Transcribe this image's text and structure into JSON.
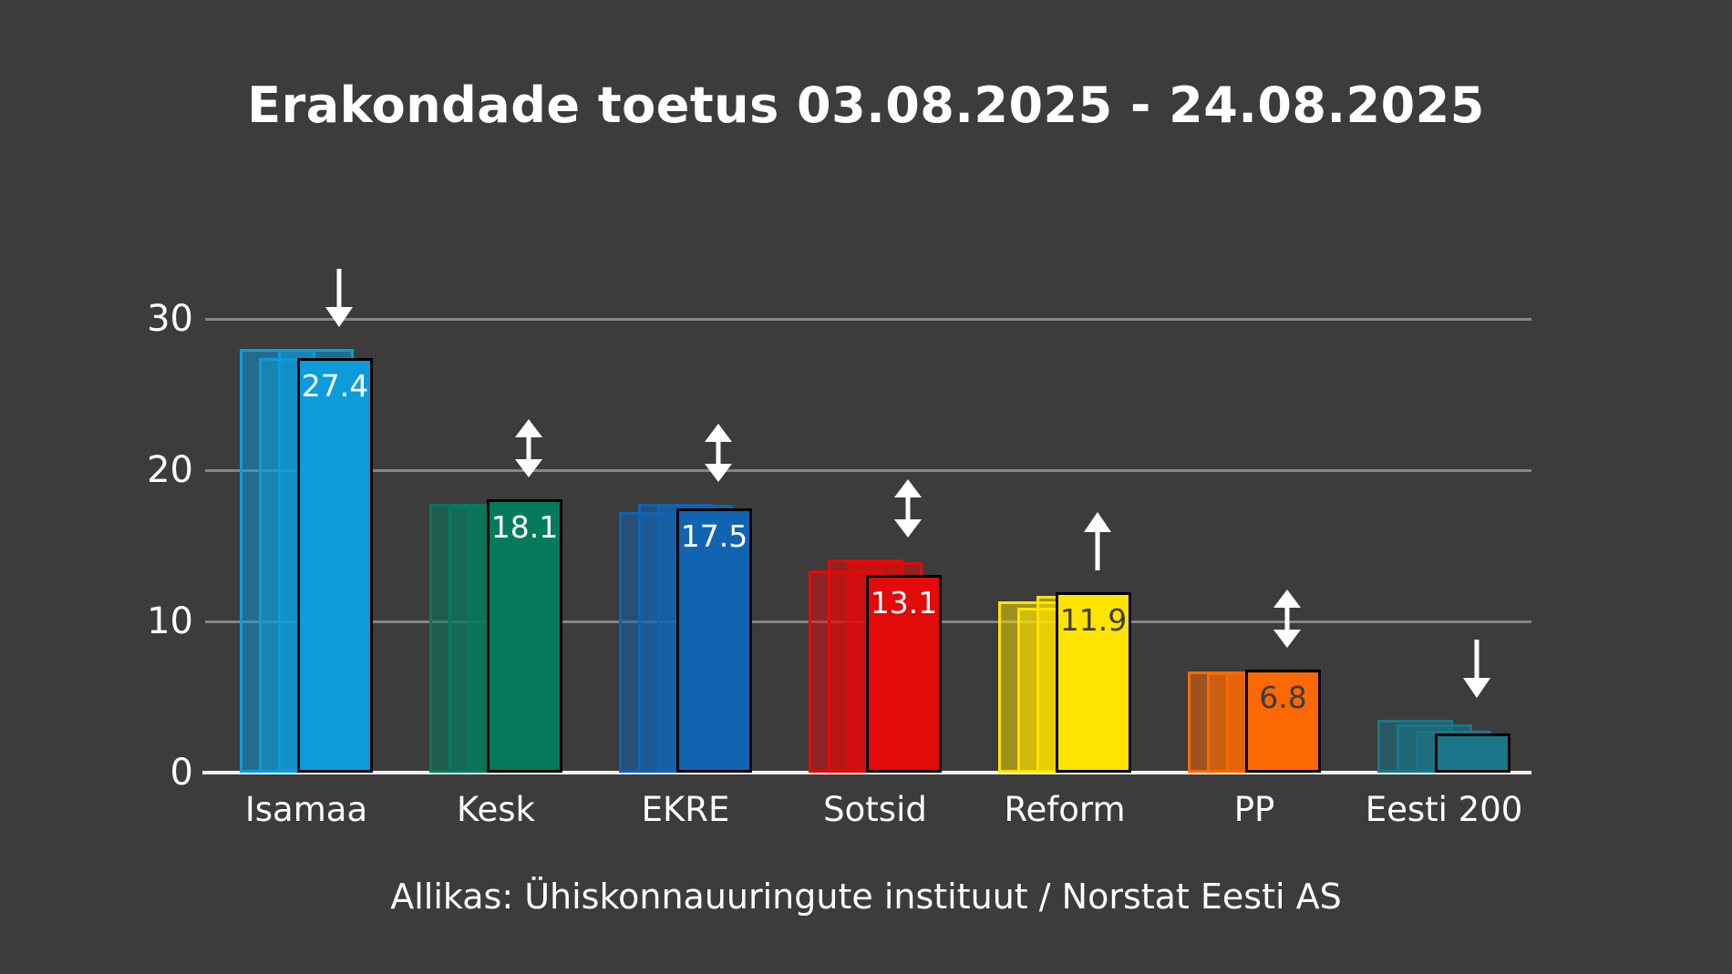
{
  "title": "Erakondade toetus 03.08.2025 - 24.08.2025",
  "source": "Allikas: Ühiskonnauuringute instituut / Norstat Eesti AS",
  "colors": {
    "background": "#3C3C3C",
    "gridline": "#858585",
    "axis_line": "#F2F2F2",
    "text": "#FFFFFF",
    "arrow": "#FFFFFF",
    "dark_value_label": "#3C3C3C"
  },
  "chart_data": {
    "type": "bar",
    "title": "Erakondade toetus 03.08.2025 - 24.08.2025",
    "subtitle": "",
    "xlabel": "",
    "ylabel": "",
    "categories": [
      "Isamaa",
      "Kesk",
      "EKRE",
      "Sotsid",
      "Reform",
      "PP",
      "Eesti 200"
    ],
    "yticks": [
      0,
      10,
      20,
      30
    ],
    "ylim": [
      0,
      33
    ],
    "grid": true,
    "legend": false,
    "note": "Each party shows three earlier faded poll bars behind the solid current bar; white arrow marks the trend",
    "groups": [
      {
        "party": "Isamaa",
        "current": 27.4,
        "value_label": "27.4",
        "history": [
          28.0,
          27.4,
          28.0
        ],
        "color": "#0D9BDC",
        "value_label_color": "#FFFFFF",
        "trend": "down"
      },
      {
        "party": "Kesk",
        "current": 18.1,
        "value_label": "18.1",
        "history": [
          17.8,
          17.6,
          17.7
        ],
        "color": "#057A5C",
        "value_label_color": "#FFFFFF",
        "trend": "up-down"
      },
      {
        "party": "EKRE",
        "current": 17.5,
        "value_label": "17.5",
        "history": [
          17.2,
          17.8,
          17.7
        ],
        "color": "#1164B1",
        "value_label_color": "#FFFFFF",
        "trend": "up-down"
      },
      {
        "party": "Sotsid",
        "current": 13.1,
        "value_label": "13.1",
        "history": [
          13.4,
          14.1,
          13.9
        ],
        "color": "#E30A0A",
        "value_label_color": "#FFFFFF",
        "trend": "up-down"
      },
      {
        "party": "Reform",
        "current": 11.9,
        "value_label": "11.9",
        "history": [
          11.3,
          10.9,
          11.7
        ],
        "color": "#FFE400",
        "value_label_color": "#3C3C3C",
        "trend": "up"
      },
      {
        "party": "PP",
        "current": 6.8,
        "value_label": "6.8",
        "history": [
          6.7,
          6.6,
          6.6
        ],
        "color": "#FC6903",
        "value_label_color": "#3C3C3C",
        "trend": "up-down"
      },
      {
        "party": "Eesti 200",
        "current": 2.6,
        "value_label": "",
        "history": [
          3.5,
          3.2,
          2.8
        ],
        "color": "#1A7689",
        "value_label_color": "#FFFFFF",
        "trend": "down"
      }
    ]
  }
}
